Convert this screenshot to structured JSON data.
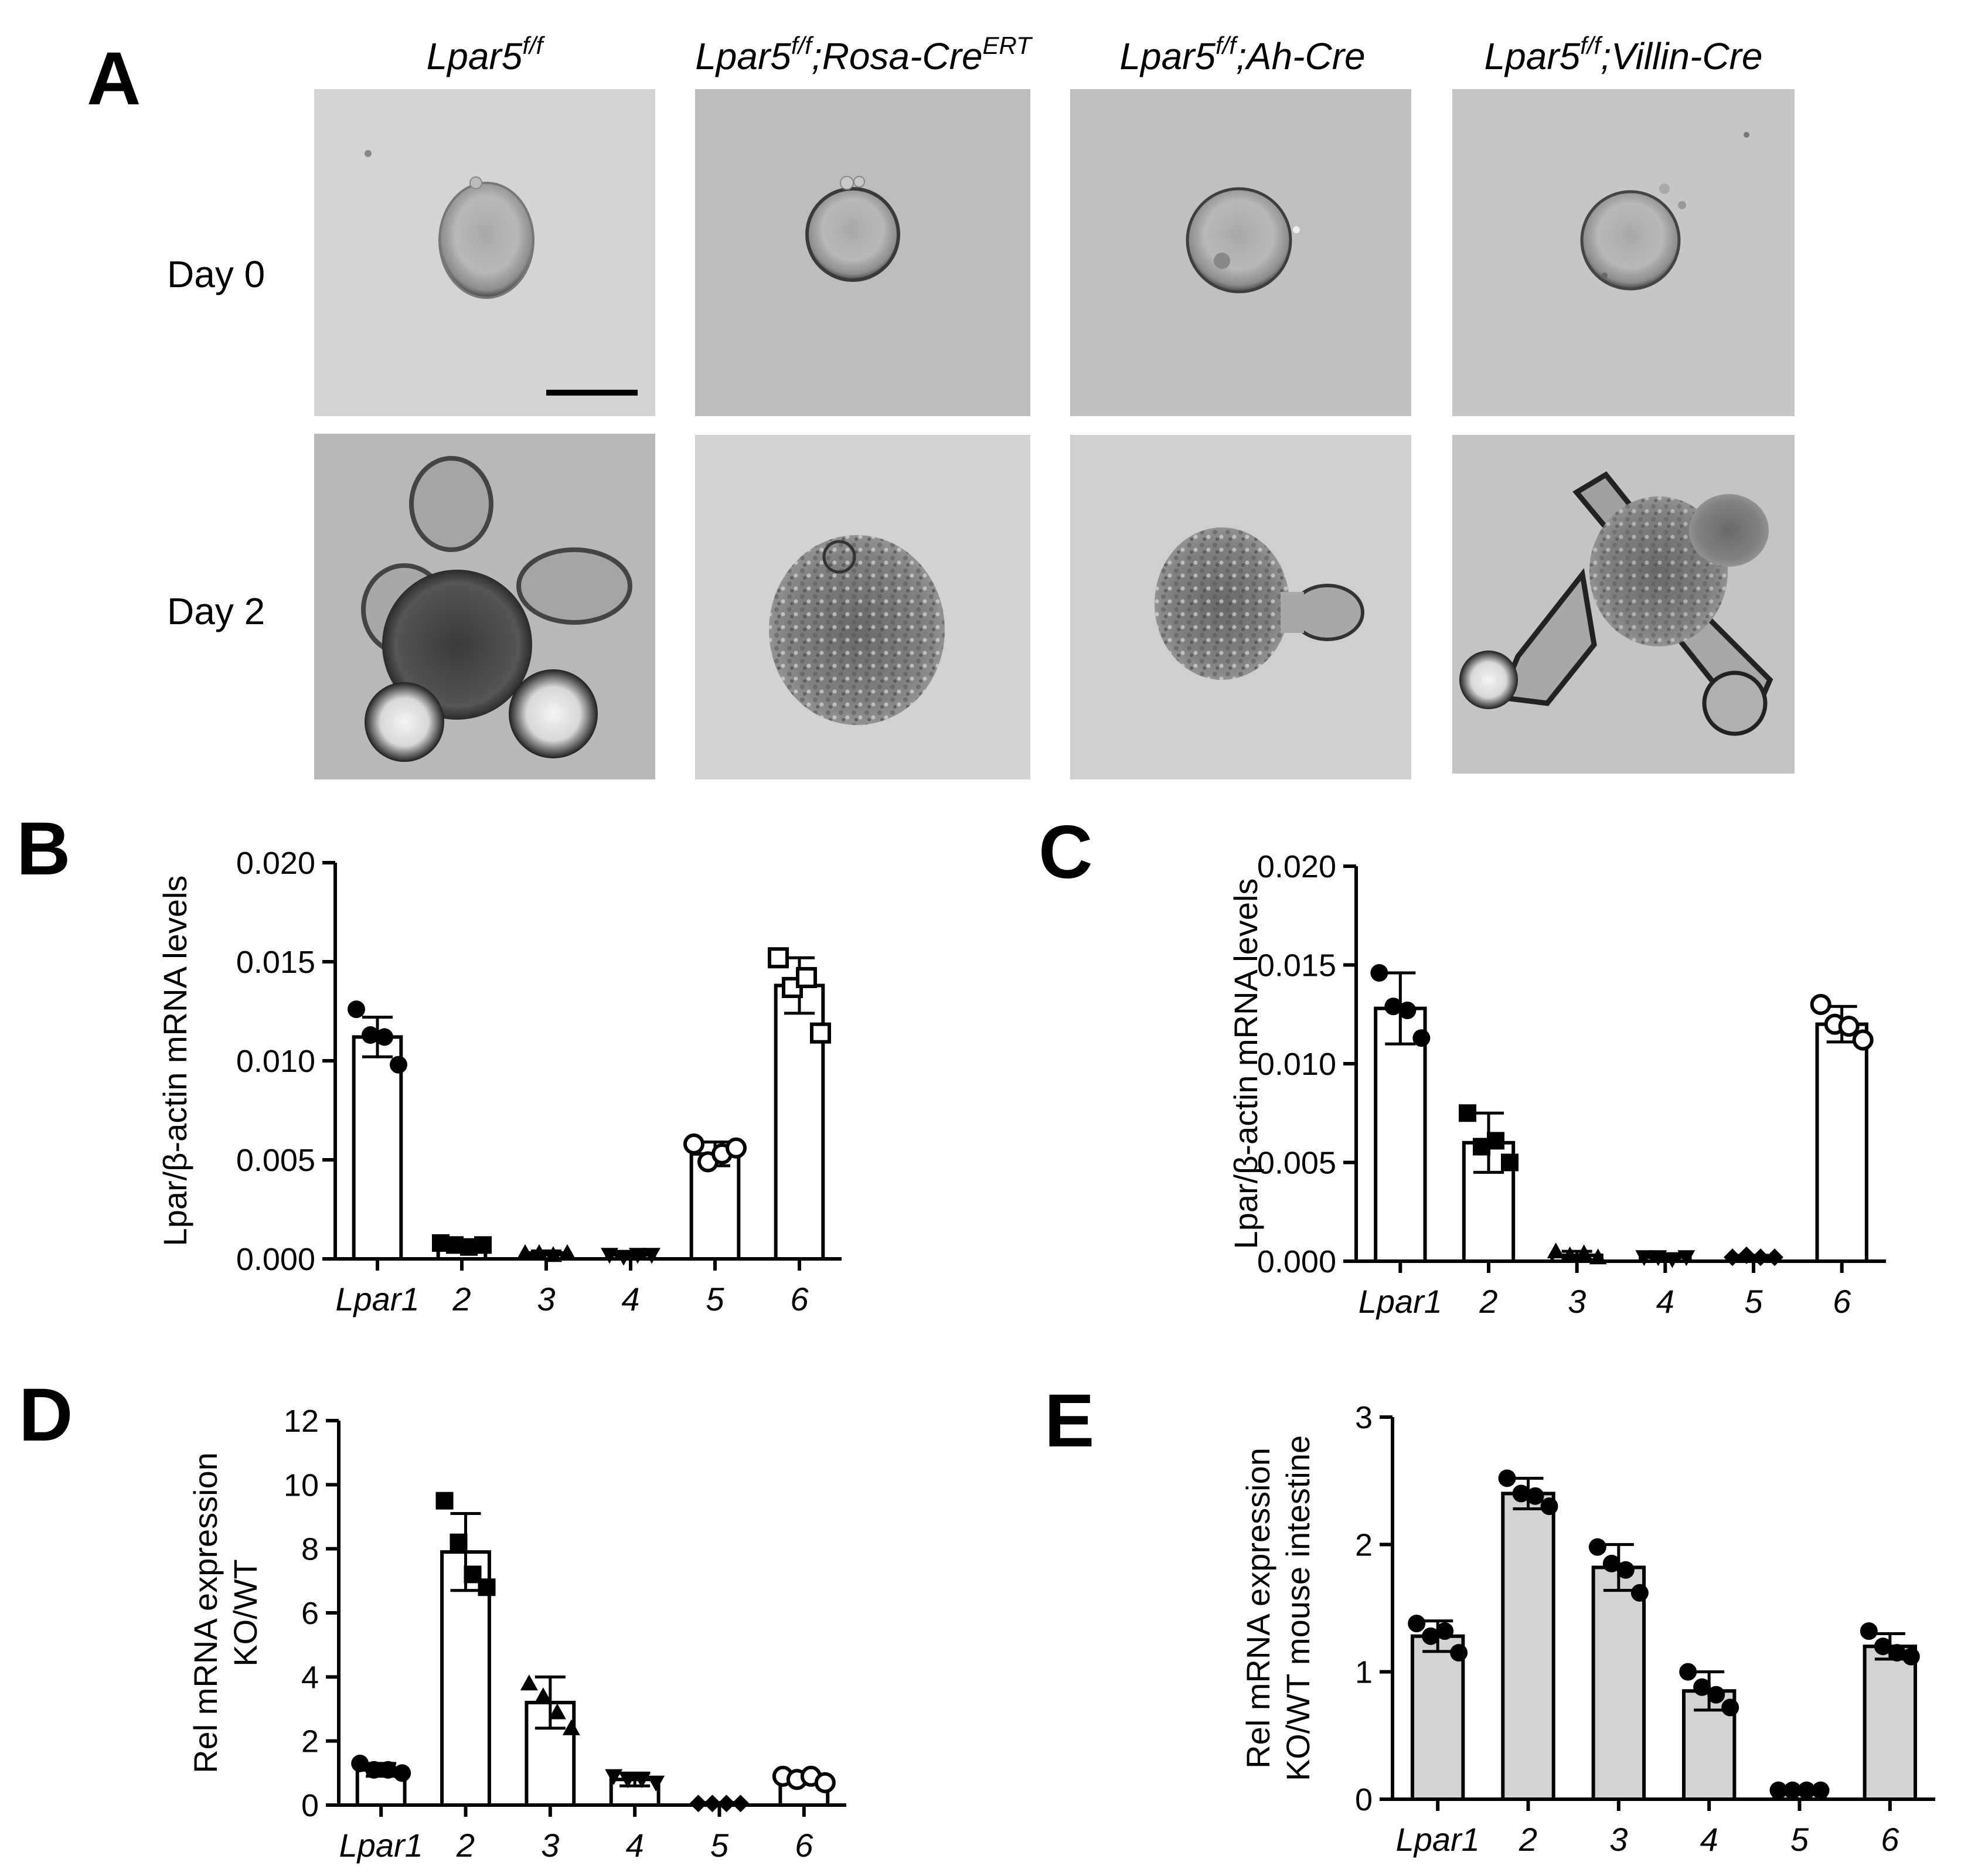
{
  "panel_a": {
    "letter": "A",
    "columns": [
      {
        "main": "Lpar5",
        "sup": "f/f",
        "rest": "",
        "sup2": ""
      },
      {
        "main": "Lpar5",
        "sup": "f/f",
        "rest": ";Rosa-Cre",
        "sup2": "ERT"
      },
      {
        "main": "Lpar5",
        "sup": "f/f",
        "rest": ";Ah-Cre",
        "sup2": ""
      },
      {
        "main": "Lpar5",
        "sup": "f/f",
        "rest": ";Villin-Cre",
        "sup2": ""
      }
    ],
    "rows": [
      "Day 0",
      "Day 2"
    ],
    "day0_morphology": [
      "cyst",
      "cyst",
      "cyst",
      "cyst"
    ],
    "day2_morphology": [
      "budding",
      "degenerated",
      "degenerated",
      "budding"
    ]
  },
  "chart_data": [
    {
      "id": "B",
      "type": "bar",
      "categories": [
        "Lpar1",
        "2",
        "3",
        "4",
        "5",
        "6"
      ],
      "values": [
        0.0112,
        0.0006,
        0.0003,
        0.0002,
        0.0053,
        0.0138
      ],
      "errors": [
        0.001,
        0.0002,
        0.0001,
        0.0001,
        0.0006,
        0.0014
      ],
      "points": [
        [
          0.0126,
          0.0113,
          0.0112,
          0.0098
        ],
        [
          0.0008,
          0.0007,
          0.0006,
          0.0007
        ],
        [
          0.0003,
          0.0003,
          0.0002,
          0.0003
        ],
        [
          0.0002,
          0.0001,
          0.0002,
          0.0002
        ],
        [
          0.0058,
          0.0049,
          0.0053,
          0.0056
        ],
        [
          0.0152,
          0.0137,
          0.0142,
          0.0114
        ]
      ],
      "markers": [
        "circle-filled",
        "square-filled",
        "triangle-filled",
        "triangle-down-filled",
        "circle-open",
        "square-open"
      ],
      "ylabel": "Lpar/β-actin mRNA levels",
      "ylim": [
        0,
        0.02
      ],
      "yticks": [
        "0.000",
        "0.005",
        "0.010",
        "0.015",
        "0.020"
      ],
      "fill": "#ffffff"
    },
    {
      "id": "C",
      "type": "bar",
      "categories": [
        "Lpar1",
        "2",
        "3",
        "4",
        "5",
        "6"
      ],
      "values": [
        0.0128,
        0.006,
        0.0003,
        0.0002,
        0.0002,
        0.012
      ],
      "errors": [
        0.0018,
        0.0015,
        0.0002,
        0.0001,
        0.0001,
        0.0009
      ],
      "points": [
        [
          0.0146,
          0.0129,
          0.0127,
          0.0113
        ],
        [
          0.0075,
          0.0058,
          0.0061,
          0.005
        ],
        [
          0.0005,
          0.0003,
          0.0004,
          0.0002
        ],
        [
          0.0002,
          0.0002,
          0.0001,
          0.0002
        ],
        [
          0.0002,
          0.0003,
          0.0002,
          0.0002
        ],
        [
          0.013,
          0.012,
          0.0119,
          0.0112
        ]
      ],
      "markers": [
        "circle-filled",
        "square-filled",
        "triangle-filled",
        "triangle-down-filled",
        "diamond-filled",
        "circle-open"
      ],
      "ylabel": "Lpar/β-actin mRNA levels",
      "ylim": [
        0,
        0.02
      ],
      "yticks": [
        "0.000",
        "0.005",
        "0.010",
        "0.015",
        "0.020"
      ],
      "fill": "#ffffff"
    },
    {
      "id": "D",
      "type": "bar",
      "categories": [
        "Lpar1",
        "2",
        "3",
        "4",
        "5",
        "6"
      ],
      "values": [
        1.1,
        7.9,
        3.2,
        0.8,
        0.05,
        0.8
      ],
      "errors": [
        0.2,
        1.2,
        0.8,
        0.2,
        0.03,
        0.15
      ],
      "points": [
        [
          1.3,
          1.1,
          1.1,
          1.0
        ],
        [
          9.5,
          8.2,
          7.2,
          6.8
        ],
        [
          3.8,
          3.4,
          2.9,
          2.4
        ],
        [
          0.9,
          0.8,
          0.8,
          0.7
        ],
        [
          0.05,
          0.05,
          0.05,
          0.05
        ],
        [
          0.9,
          0.8,
          0.9,
          0.7
        ]
      ],
      "markers": [
        "circle-filled",
        "square-filled",
        "triangle-filled",
        "triangle-down-filled",
        "diamond-filled",
        "circle-open"
      ],
      "ylabel_lines": [
        "Rel mRNA expression",
        "KO/WT"
      ],
      "ylim": [
        0,
        12
      ],
      "yticks": [
        "0",
        "2",
        "4",
        "6",
        "8",
        "10",
        "12"
      ],
      "fill": "#ffffff"
    },
    {
      "id": "E",
      "type": "bar",
      "categories": [
        "Lpar1",
        "2",
        "3",
        "4",
        "5",
        "6"
      ],
      "values": [
        1.28,
        2.4,
        1.82,
        0.85,
        0.07,
        1.2
      ],
      "errors": [
        0.12,
        0.12,
        0.18,
        0.15,
        0.02,
        0.1
      ],
      "points": [
        [
          1.38,
          1.28,
          1.32,
          1.15
        ],
        [
          2.52,
          2.4,
          2.38,
          2.3
        ],
        [
          1.98,
          1.85,
          1.8,
          1.62
        ],
        [
          1.0,
          0.88,
          0.82,
          0.72
        ],
        [
          0.07,
          0.07,
          0.07,
          0.07
        ],
        [
          1.32,
          1.2,
          1.15,
          1.12
        ]
      ],
      "markers": [
        "circle-filled",
        "circle-filled",
        "circle-filled",
        "circle-filled",
        "circle-filled",
        "circle-filled"
      ],
      "ylabel_lines": [
        "Rel mRNA expression",
        "KO/WT mouse intestine"
      ],
      "ylim": [
        0,
        3
      ],
      "yticks": [
        "0",
        "1",
        "2",
        "3"
      ],
      "fill": "#d3d3d3"
    }
  ]
}
